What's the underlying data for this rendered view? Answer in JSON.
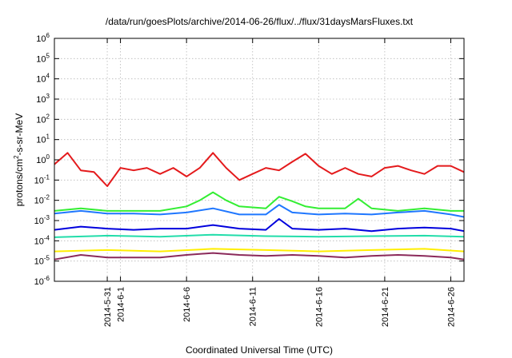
{
  "chart_data": {
    "type": "line",
    "title": "/data/run/goesPlots/archive/2014-06-26/flux/../flux/31daysMarsFluxes.txt",
    "xlabel": "Coordinated Universal Time (UTC)",
    "ylabel_parts": [
      "protons/cm",
      "2",
      "-s-sr-MeV"
    ],
    "y_scale": "log",
    "ylim": [
      1e-06,
      1000000.0
    ],
    "y_ticks": [
      {
        "base": "10",
        "exp": "-6",
        "value": 1e-06
      },
      {
        "base": "10",
        "exp": "-5",
        "value": 1e-05
      },
      {
        "base": "10",
        "exp": "-4",
        "value": 0.0001
      },
      {
        "base": "10",
        "exp": "-3",
        "value": 0.001
      },
      {
        "base": "10",
        "exp": "-2",
        "value": 0.01
      },
      {
        "base": "10",
        "exp": "-1",
        "value": 0.1
      },
      {
        "base": "10",
        "exp": "0",
        "value": 1
      },
      {
        "base": "10",
        "exp": "1",
        "value": 10
      },
      {
        "base": "10",
        "exp": "2",
        "value": 100
      },
      {
        "base": "10",
        "exp": "3",
        "value": 1000
      },
      {
        "base": "10",
        "exp": "4",
        "value": 10000
      },
      {
        "base": "10",
        "exp": "5",
        "value": 100000
      },
      {
        "base": "10",
        "exp": "6",
        "value": 1000000
      }
    ],
    "xlim": [
      "2014-05-27",
      "2014-06-27"
    ],
    "x_ticks": [
      {
        "label": "2014-5-31",
        "date": "2014-05-31"
      },
      {
        "label": "2014-6-1",
        "date": "2014-06-01"
      },
      {
        "label": "2014-6-6",
        "date": "2014-06-06"
      },
      {
        "label": "2014-6-11",
        "date": "2014-06-11"
      },
      {
        "label": "2014-6-16",
        "date": "2014-06-16"
      },
      {
        "label": "2014-6-21",
        "date": "2014-06-21"
      },
      {
        "label": "2014-6-26",
        "date": "2014-06-26"
      }
    ],
    "grid": true,
    "series": [
      {
        "color": "#e41a1c",
        "x": [
          "2014-05-27",
          "2014-05-28",
          "2014-05-29",
          "2014-05-30",
          "2014-05-31",
          "2014-06-01",
          "2014-06-02",
          "2014-06-03",
          "2014-06-04",
          "2014-06-05",
          "2014-06-06",
          "2014-06-07",
          "2014-06-08",
          "2014-06-09",
          "2014-06-10",
          "2014-06-11",
          "2014-06-12",
          "2014-06-13",
          "2014-06-14",
          "2014-06-15",
          "2014-06-16",
          "2014-06-17",
          "2014-06-18",
          "2014-06-19",
          "2014-06-20",
          "2014-06-21",
          "2014-06-22",
          "2014-06-23",
          "2014-06-24",
          "2014-06-25",
          "2014-06-26",
          "2014-06-27"
        ],
        "y": [
          0.6,
          2.2,
          0.3,
          0.25,
          0.05,
          0.4,
          0.3,
          0.4,
          0.2,
          0.4,
          0.15,
          0.4,
          2.2,
          0.4,
          0.1,
          0.2,
          0.4,
          0.3,
          0.8,
          2.0,
          0.5,
          0.2,
          0.4,
          0.2,
          0.15,
          0.4,
          0.5,
          0.3,
          0.2,
          0.5,
          0.5,
          0.25
        ]
      },
      {
        "color": "#33ee33",
        "x": [
          "2014-05-27",
          "2014-05-29",
          "2014-05-31",
          "2014-06-02",
          "2014-06-04",
          "2014-06-06",
          "2014-06-07",
          "2014-06-08",
          "2014-06-09",
          "2014-06-10",
          "2014-06-12",
          "2014-06-13",
          "2014-06-14",
          "2014-06-15",
          "2014-06-16",
          "2014-06-18",
          "2014-06-19",
          "2014-06-20",
          "2014-06-22",
          "2014-06-24",
          "2014-06-26",
          "2014-06-27"
        ],
        "y": [
          0.003,
          0.004,
          0.003,
          0.003,
          0.003,
          0.005,
          0.01,
          0.025,
          0.01,
          0.005,
          0.004,
          0.015,
          0.009,
          0.005,
          0.004,
          0.004,
          0.012,
          0.004,
          0.003,
          0.004,
          0.003,
          0.003
        ]
      },
      {
        "color": "#1f77ff",
        "x": [
          "2014-05-27",
          "2014-05-29",
          "2014-05-31",
          "2014-06-02",
          "2014-06-04",
          "2014-06-06",
          "2014-06-08",
          "2014-06-10",
          "2014-06-12",
          "2014-06-13",
          "2014-06-14",
          "2014-06-16",
          "2014-06-18",
          "2014-06-20",
          "2014-06-22",
          "2014-06-24",
          "2014-06-26",
          "2014-06-27"
        ],
        "y": [
          0.0022,
          0.003,
          0.0022,
          0.0022,
          0.002,
          0.0025,
          0.004,
          0.002,
          0.002,
          0.006,
          0.0025,
          0.002,
          0.0022,
          0.002,
          0.0025,
          0.003,
          0.002,
          0.0015
        ]
      },
      {
        "color": "#0000dd",
        "x": [
          "2014-05-27",
          "2014-05-29",
          "2014-05-31",
          "2014-06-02",
          "2014-06-04",
          "2014-06-06",
          "2014-06-08",
          "2014-06-10",
          "2014-06-12",
          "2014-06-13",
          "2014-06-14",
          "2014-06-16",
          "2014-06-18",
          "2014-06-20",
          "2014-06-22",
          "2014-06-24",
          "2014-06-26",
          "2014-06-27"
        ],
        "y": [
          0.00035,
          0.0005,
          0.0004,
          0.00035,
          0.0004,
          0.0004,
          0.0006,
          0.0004,
          0.00035,
          0.0012,
          0.0004,
          0.00035,
          0.0004,
          0.0003,
          0.0004,
          0.00045,
          0.0004,
          0.0003
        ]
      },
      {
        "color": "#22ddaa",
        "x": [
          "2014-05-27",
          "2014-05-31",
          "2014-06-04",
          "2014-06-08",
          "2014-06-12",
          "2014-06-16",
          "2014-06-20",
          "2014-06-24",
          "2014-06-27"
        ],
        "y": [
          0.00015,
          0.00018,
          0.00016,
          0.0002,
          0.00017,
          0.00016,
          0.00017,
          0.00018,
          0.00016
        ]
      },
      {
        "color": "#ffee00",
        "x": [
          "2014-05-27",
          "2014-05-31",
          "2014-06-04",
          "2014-06-08",
          "2014-06-12",
          "2014-06-16",
          "2014-06-20",
          "2014-06-24",
          "2014-06-27"
        ],
        "y": [
          3e-05,
          3.5e-05,
          3e-05,
          4e-05,
          3.5e-05,
          3e-05,
          3.5e-05,
          4e-05,
          3e-05
        ]
      },
      {
        "color": "#8b2a5a",
        "x": [
          "2014-05-27",
          "2014-05-29",
          "2014-05-31",
          "2014-06-02",
          "2014-06-04",
          "2014-06-06",
          "2014-06-08",
          "2014-06-10",
          "2014-06-12",
          "2014-06-14",
          "2014-06-16",
          "2014-06-18",
          "2014-06-20",
          "2014-06-22",
          "2014-06-24",
          "2014-06-26",
          "2014-06-27"
        ],
        "y": [
          1.2e-05,
          2e-05,
          1.5e-05,
          1.5e-05,
          1.5e-05,
          2e-05,
          2.5e-05,
          2e-05,
          1.8e-05,
          2e-05,
          1.8e-05,
          1.5e-05,
          1.8e-05,
          2e-05,
          1.8e-05,
          1.5e-05,
          1.2e-05
        ]
      }
    ]
  }
}
